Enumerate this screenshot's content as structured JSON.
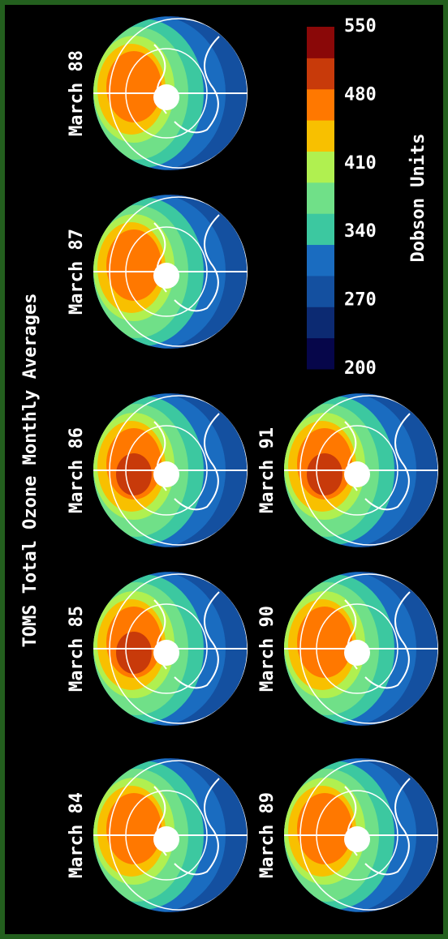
{
  "title": "TOMS Total Ozone Monthly Averages",
  "panels": [
    {
      "label": "March 84"
    },
    {
      "label": "March 85"
    },
    {
      "label": "March 86"
    },
    {
      "label": "March 87"
    },
    {
      "label": "March 88"
    },
    {
      "label": "March 89"
    },
    {
      "label": "March 90"
    },
    {
      "label": "March 91"
    }
  ],
  "colorbar": {
    "label": "Dobson Units",
    "lim": [
      200,
      550
    ],
    "ticks": [
      200,
      270,
      340,
      410,
      480,
      550
    ],
    "colors": [
      "#06064a",
      "#0c2a72",
      "#1450a0",
      "#1a6cc0",
      "#3cc8a0",
      "#70e088",
      "#b0f050",
      "#f8c000",
      "#ff7800",
      "#c83a0a",
      "#8a0808"
    ]
  }
}
